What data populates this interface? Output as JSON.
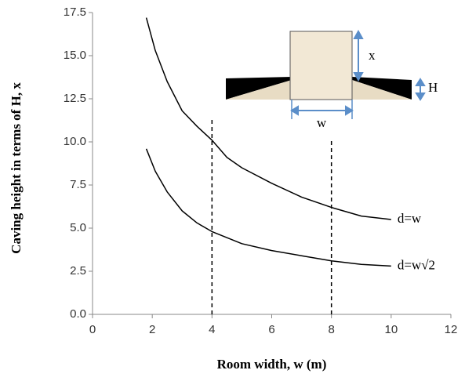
{
  "chart_data": {
    "type": "line",
    "x_label": "Room width, w (m)",
    "y_label": "Caving height in terms of H, x",
    "xlim": [
      0,
      12
    ],
    "xticks": [
      0,
      2,
      4,
      6,
      8,
      10,
      12
    ],
    "ylim": [
      0,
      17.5
    ],
    "yticks": [
      {
        "value": 0,
        "label": "0.0"
      },
      2.5,
      {
        "value": 5,
        "label": "5.0"
      },
      7.5,
      {
        "value": 10,
        "label": "10.0"
      },
      12.5,
      {
        "value": 15,
        "label": "15.0"
      },
      17.5
    ],
    "series": [
      {
        "name": "d=w",
        "color": "#000000",
        "x": [
          1.8,
          2.1,
          2.5,
          3,
          3.5,
          4,
          4.5,
          5,
          6,
          7,
          8,
          9,
          10
        ],
        "values": [
          17.2,
          15.3,
          13.5,
          11.8,
          10.9,
          10.1,
          9.1,
          8.5,
          7.6,
          6.8,
          6.2,
          5.7,
          5.5
        ]
      },
      {
        "name": "d=w√2",
        "color": "#000000",
        "x": [
          1.8,
          2.1,
          2.5,
          3,
          3.5,
          4,
          5,
          6,
          7,
          8,
          9,
          10
        ],
        "values": [
          9.6,
          8.3,
          7.1,
          6.0,
          5.3,
          4.8,
          4.1,
          3.7,
          3.4,
          3.1,
          2.9,
          2.8
        ]
      }
    ],
    "reference_lines": [
      {
        "x": 4,
        "ymax": 11.4
      },
      {
        "x": 8,
        "ymax": 10.2
      }
    ],
    "inset_labels": [
      "x",
      "H",
      "w"
    ]
  }
}
